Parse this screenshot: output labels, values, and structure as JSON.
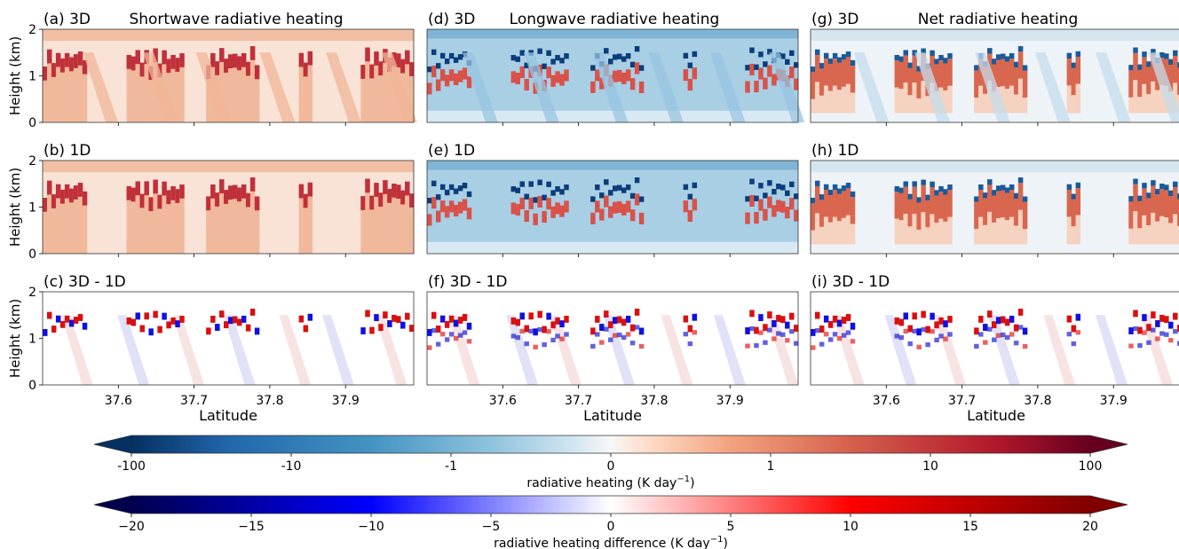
{
  "chart_data": {
    "type": "heatmap",
    "x_ticks": [
      37.6,
      37.7,
      37.8,
      37.9
    ],
    "x_tick_labels": [
      "37.6",
      "37.7",
      "37.8",
      "37.9"
    ],
    "xlim": [
      37.5,
      37.99
    ],
    "ylim": [
      0,
      2
    ],
    "y_ticks": [
      0,
      1,
      2
    ],
    "y_tick_labels": [
      "0",
      "1",
      "2"
    ],
    "ylabel": "Height (km)",
    "xlabel": "Latitude",
    "column_titles": [
      "Shortwave radiative heating",
      "Longwave radiative heating",
      "Net radiative heating"
    ],
    "panels": [
      {
        "label": "(a) 3D",
        "component": "shortwave",
        "mode": "3D"
      },
      {
        "label": "(b) 1D",
        "component": "shortwave",
        "mode": "1D"
      },
      {
        "label": "(c) 3D - 1D",
        "component": "shortwave",
        "mode": "diff"
      },
      {
        "label": "(d) 3D",
        "component": "longwave",
        "mode": "3D"
      },
      {
        "label": "(e) 1D",
        "component": "longwave",
        "mode": "1D"
      },
      {
        "label": "(f) 3D - 1D",
        "component": "longwave",
        "mode": "diff"
      },
      {
        "label": "(g) 3D",
        "component": "net",
        "mode": "3D"
      },
      {
        "label": "(h) 1D",
        "component": "net",
        "mode": "1D"
      },
      {
        "label": "(i) 3D - 1D",
        "component": "net",
        "mode": "diff"
      }
    ],
    "colorbars": [
      {
        "label_prefix": "radiative heating (K day",
        "label_sup": "−1",
        "label_suffix": ")",
        "colormap": "RdBu_r",
        "scale": "symlog",
        "range": [
          -100,
          100
        ],
        "ticks": [
          "-100",
          "-10",
          "-1",
          "0",
          "1",
          "10",
          "100"
        ],
        "extend": "both"
      },
      {
        "label_prefix": "radiative heating difference (K day",
        "label_sup": "−1",
        "label_suffix": ")",
        "colormap": "seismic",
        "scale": "linear",
        "range": [
          -20,
          20
        ],
        "ticks": [
          "−20",
          "−15",
          "−10",
          "−5",
          "0",
          "5",
          "10",
          "15",
          "20"
        ],
        "extend": "both"
      }
    ]
  }
}
